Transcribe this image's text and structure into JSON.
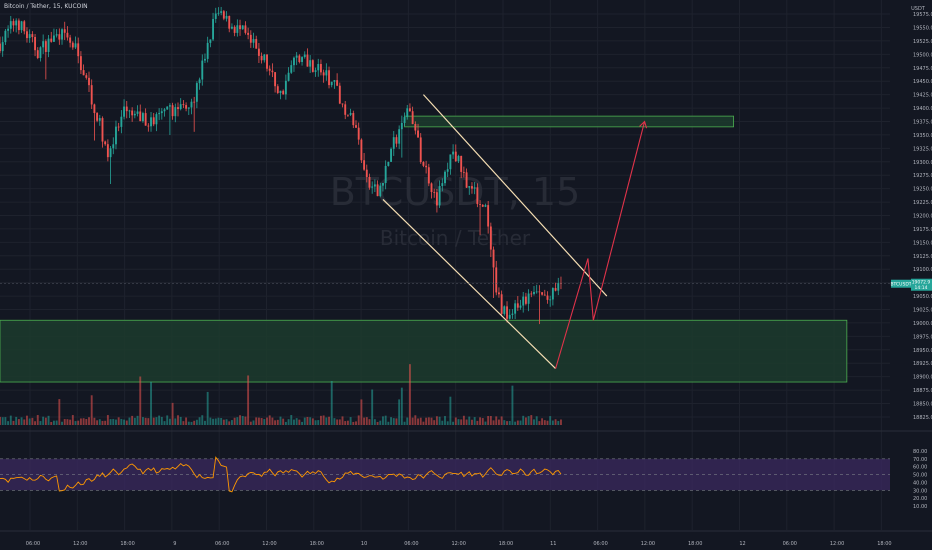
{
  "header": {
    "symbol_title": "Bitcoin / Tether, 15, KUCOIN"
  },
  "watermark": {
    "symbol": "BTCUSDT, 15",
    "name": "Bitcoin / Tether"
  },
  "price_scale": {
    "currency": "USDT",
    "ticks": [
      "19575.0",
      "19550.0",
      "19525.0",
      "19500.0",
      "19475.0",
      "19450.0",
      "19425.0",
      "19400.0",
      "19375.0",
      "19350.0",
      "19325.0",
      "19300.0",
      "19275.0",
      "19250.0",
      "19225.0",
      "19200.0",
      "19175.0",
      "19150.0",
      "19125.0",
      "19100.0",
      "19075.0",
      "19050.0",
      "19025.0",
      "19000.0",
      "18975.0",
      "18950.0",
      "18925.0",
      "18900.0",
      "18875.0",
      "18850.0",
      "18825.0"
    ],
    "last_price_label": "BTCUSDT",
    "last_price_value": "19072.9",
    "countdown": "14:14"
  },
  "rsi_scale": {
    "ticks": [
      "80.00",
      "70.00",
      "60.00",
      "50.00",
      "40.00",
      "30.00",
      "20.00",
      "10.00"
    ]
  },
  "time_axis": {
    "labels": [
      "06:00",
      "12:00",
      "18:00",
      "9",
      "06:00",
      "12:00",
      "18:00",
      "10",
      "06:00",
      "12:00",
      "18:00",
      "11",
      "06:00",
      "12:00",
      "18:00",
      "12",
      "06:00",
      "12:00",
      "18:00"
    ]
  },
  "colors": {
    "background": "#131722",
    "up": "#26a69a",
    "down": "#ef5350",
    "zone_fill": "#1c3b2d",
    "zone_border": "#4caf50",
    "channel": "#f5deb3",
    "projection": "#e0334a",
    "rsi": "#ff9800",
    "rsi_band": "#3b2a5f"
  },
  "chart_data": {
    "type": "candlestick",
    "series_name": "BTCUSDT",
    "interval": "15",
    "ylim": [
      18810,
      19590
    ],
    "close_path": [
      {
        "t": 0,
        "p": 19520
      },
      {
        "t": 6,
        "p": 19565
      },
      {
        "t": 14,
        "p": 19505
      },
      {
        "t": 22,
        "p": 19540
      },
      {
        "t": 28,
        "p": 19510
      },
      {
        "t": 34,
        "p": 19420
      },
      {
        "t": 40,
        "p": 19315
      },
      {
        "t": 46,
        "p": 19390
      },
      {
        "t": 56,
        "p": 19375
      },
      {
        "t": 64,
        "p": 19395
      },
      {
        "t": 72,
        "p": 19420
      },
      {
        "t": 80,
        "p": 19575
      },
      {
        "t": 90,
        "p": 19540
      },
      {
        "t": 98,
        "p": 19490
      },
      {
        "t": 104,
        "p": 19425
      },
      {
        "t": 110,
        "p": 19500
      },
      {
        "t": 118,
        "p": 19475
      },
      {
        "t": 124,
        "p": 19440
      },
      {
        "t": 132,
        "p": 19360
      },
      {
        "t": 136,
        "p": 19260
      },
      {
        "t": 140,
        "p": 19240
      },
      {
        "t": 146,
        "p": 19335
      },
      {
        "t": 152,
        "p": 19400
      },
      {
        "t": 156,
        "p": 19310
      },
      {
        "t": 162,
        "p": 19230
      },
      {
        "t": 168,
        "p": 19320
      },
      {
        "t": 174,
        "p": 19255
      },
      {
        "t": 180,
        "p": 19210
      },
      {
        "t": 184,
        "p": 19050
      },
      {
        "t": 188,
        "p": 19010
      },
      {
        "t": 192,
        "p": 19030
      },
      {
        "t": 198,
        "p": 19055
      },
      {
        "t": 204,
        "p": 19045
      },
      {
        "t": 208,
        "p": 19073
      }
    ],
    "time_range": [
      0,
      330
    ],
    "resistance_zone": {
      "low": 19365,
      "high": 19385,
      "t_start": 150,
      "t_end": 272
    },
    "support_zone": {
      "low": 18890,
      "high": 19005,
      "t_start": 0,
      "t_end": 314
    },
    "channel_upper": [
      {
        "t": 157,
        "p": 19425
      },
      {
        "t": 225,
        "p": 19050
      }
    ],
    "channel_lower": [
      {
        "t": 142,
        "p": 19230
      },
      {
        "t": 206,
        "p": 18915
      }
    ],
    "projection": [
      {
        "t": 206,
        "p": 18915
      },
      {
        "t": 218,
        "p": 19120
      },
      {
        "t": 220,
        "p": 19005
      },
      {
        "t": 239,
        "p": 19375
      }
    ],
    "rsi": {
      "ylim": [
        10,
        85
      ],
      "band": [
        30,
        70
      ],
      "mid": 50
    },
    "volume_max_label": ""
  }
}
